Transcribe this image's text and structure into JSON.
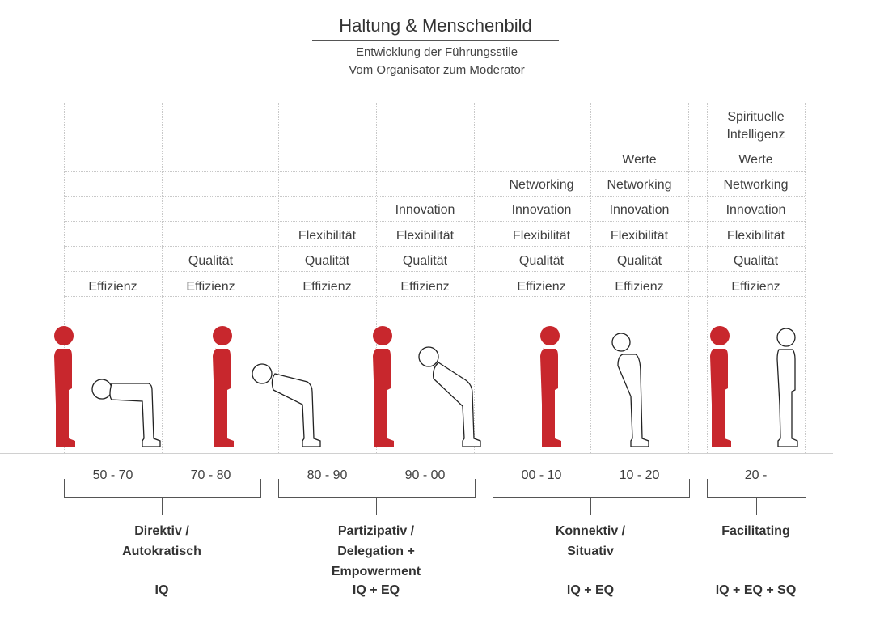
{
  "header": {
    "title": "Haltung & Menschenbild",
    "subtitle_line1": "Entwicklung der Führungsstile",
    "subtitle_line2": "Vom Organisator zum Moderator"
  },
  "columns": [
    {
      "range": "50 - 70",
      "values": [
        "Effizienz"
      ]
    },
    {
      "range": "70 - 80",
      "values": [
        "Effizienz",
        "Qualität"
      ]
    },
    {
      "range": "80 - 90",
      "values": [
        "Effizienz",
        "Qualität",
        "Flexibilität"
      ]
    },
    {
      "range": "90 - 00",
      "values": [
        "Effizienz",
        "Qualität",
        "Flexibilität",
        "Innovation"
      ]
    },
    {
      "range": "00 - 10",
      "values": [
        "Effizienz",
        "Qualität",
        "Flexibilität",
        "Innovation",
        "Networking"
      ]
    },
    {
      "range": "10 - 20",
      "values": [
        "Effizienz",
        "Qualität",
        "Flexibilität",
        "Innovation",
        "Networking",
        "Werte"
      ]
    },
    {
      "range": "20 -",
      "values": [
        "Effizienz",
        "Qualität",
        "Flexibilität",
        "Innovation",
        "Networking",
        "Werte",
        "Spirituelle Intelligenz"
      ]
    }
  ],
  "groups": [
    {
      "style": "Direktiv / Autokratisch",
      "style_lines": [
        "Direktiv /",
        "Autokratisch"
      ],
      "intelligence": "IQ"
    },
    {
      "style": "Partizipativ / Delegation + Empowerment",
      "style_lines": [
        "Partizipativ /",
        "Delegation +",
        "Empowerment"
      ],
      "intelligence": "IQ + EQ"
    },
    {
      "style": "Konnektiv / Situativ",
      "style_lines": [
        "Konnektiv /",
        "Situativ"
      ],
      "intelligence": "IQ + EQ"
    },
    {
      "style": "Facilitating",
      "style_lines": [
        "Facilitating"
      ],
      "intelligence": "IQ + EQ + SQ"
    }
  ],
  "colors": {
    "leader": "#c8272d",
    "follower_stroke": "#222222",
    "grid": "#c8c8c8"
  }
}
